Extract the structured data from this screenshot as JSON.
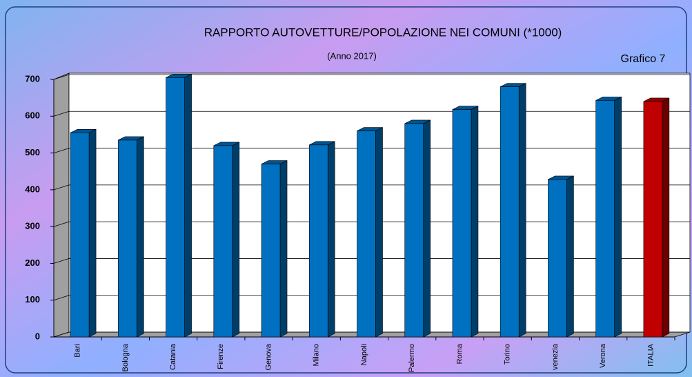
{
  "chart_data": {
    "type": "bar3d",
    "title": "RAPPORTO AUTOVETTURE/POPOLAZIONE NEI COMUNI (*1000)",
    "subtitle": "(Anno 2017)",
    "label": "Grafico 7",
    "categories": [
      "Bari",
      "Bologna",
      "Catania",
      "Firenze",
      "Genova",
      "Milano",
      "Napoli",
      "Palermo",
      "Roma",
      "Torino",
      "venezia",
      "Verona",
      "ITALIA"
    ],
    "values": [
      555,
      535,
      705,
      520,
      470,
      522,
      560,
      580,
      618,
      680,
      428,
      643,
      640
    ],
    "colors": [
      "#0070c0",
      "#0070c0",
      "#0070c0",
      "#0070c0",
      "#0070c0",
      "#0070c0",
      "#0070c0",
      "#0070c0",
      "#0070c0",
      "#0070c0",
      "#0070c0",
      "#0070c0",
      "#c00000"
    ],
    "ylim": [
      0,
      700
    ],
    "yticks": [
      0,
      100,
      200,
      300,
      400,
      500,
      600,
      700
    ],
    "grid": true
  }
}
